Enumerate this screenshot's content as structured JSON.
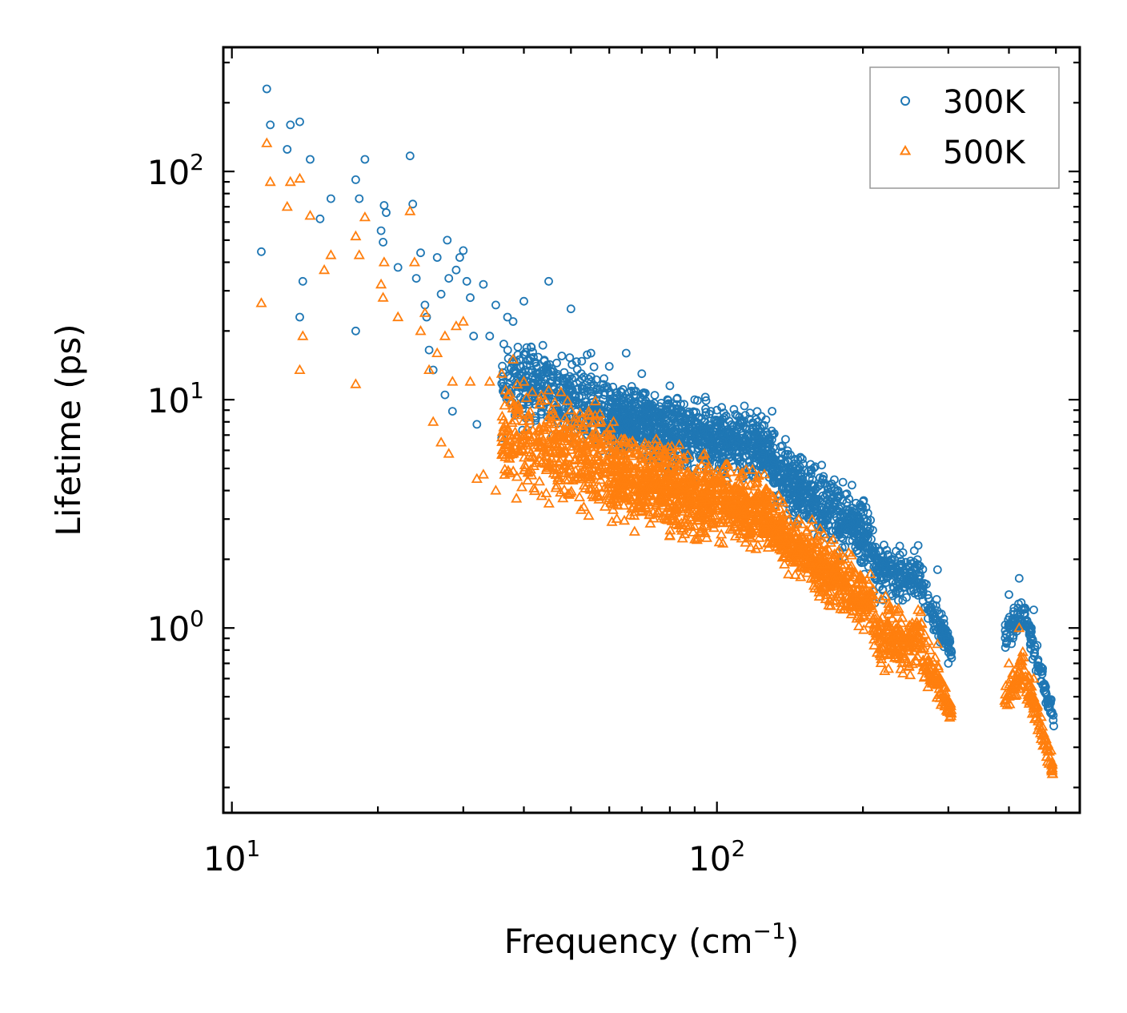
{
  "chart_data": {
    "type": "scatter",
    "title": "",
    "xlabel": "Frequency (cm",
    "xlabel_sup": "−1",
    "xlabel_end": ")",
    "ylabel": "Lifetime (ps)",
    "xscale": "log",
    "yscale": "log",
    "xlim": [
      9.6,
      560
    ],
    "ylim": [
      0.155,
      350
    ],
    "legend_position": "top-right",
    "x_ticks": [
      {
        "value": 10,
        "base": "10",
        "exp": "1"
      },
      {
        "value": 100,
        "base": "10",
        "exp": "2"
      }
    ],
    "y_ticks": [
      {
        "value": 1,
        "base": "10",
        "exp": "0"
      },
      {
        "value": 10,
        "base": "10",
        "exp": "1"
      },
      {
        "value": 100,
        "base": "10",
        "exp": "2"
      }
    ],
    "series": [
      {
        "name": "300K",
        "marker": "circle",
        "color": "#1f77b4",
        "points": [
          [
            11.5,
            44.5
          ],
          [
            11.8,
            230
          ],
          [
            12.0,
            160
          ],
          [
            13.0,
            125
          ],
          [
            13.2,
            160
          ],
          [
            13.8,
            165
          ],
          [
            13.8,
            23
          ],
          [
            14.0,
            33
          ],
          [
            14.5,
            113
          ],
          [
            15.2,
            62
          ],
          [
            16.0,
            76
          ],
          [
            18.0,
            20
          ],
          [
            18.0,
            92
          ],
          [
            18.3,
            76
          ],
          [
            18.8,
            113
          ],
          [
            20.3,
            55
          ],
          [
            20.5,
            49
          ],
          [
            20.6,
            71
          ],
          [
            20.8,
            66
          ],
          [
            22.0,
            38
          ],
          [
            23.3,
            117
          ],
          [
            23.6,
            72
          ],
          [
            24.0,
            34
          ],
          [
            24.5,
            44
          ],
          [
            25.0,
            26
          ],
          [
            25.2,
            23
          ],
          [
            25.5,
            16.5
          ],
          [
            26.0,
            13.5
          ],
          [
            26.5,
            42
          ],
          [
            27.0,
            29
          ],
          [
            27.5,
            10.5
          ],
          [
            27.8,
            50
          ],
          [
            28.0,
            34
          ],
          [
            28.5,
            8.9
          ],
          [
            29.0,
            37
          ],
          [
            29.5,
            42
          ],
          [
            30.0,
            45
          ],
          [
            30.5,
            33
          ],
          [
            31.0,
            28
          ],
          [
            31.5,
            19
          ],
          [
            32.0,
            7.8
          ],
          [
            33.0,
            32
          ],
          [
            34.0,
            19
          ],
          [
            35.0,
            26
          ],
          [
            36.0,
            6.8
          ],
          [
            37.0,
            23
          ],
          [
            38.0,
            22
          ],
          [
            40.0,
            27
          ],
          [
            45.0,
            33
          ],
          [
            50.0,
            25
          ],
          [
            55.0,
            16
          ],
          [
            60.0,
            14
          ],
          [
            65.0,
            16
          ],
          [
            70.0,
            13
          ],
          [
            80.0,
            11.5
          ],
          [
            90.0,
            10
          ],
          [
            100.0,
            9
          ],
          [
            120.0,
            7
          ],
          [
            150.0,
            5.5
          ],
          [
            175.0,
            4
          ],
          [
            200.0,
            2.6
          ],
          [
            230.0,
            2
          ],
          [
            260.0,
            2.3
          ],
          [
            285.0,
            1.8
          ],
          [
            300.0,
            0.7
          ],
          [
            400.0,
            1.4
          ],
          [
            420.0,
            1.65
          ],
          [
            450.0,
            1.2
          ],
          [
            490.0,
            0.42
          ]
        ]
      },
      {
        "name": "500K",
        "marker": "triangle",
        "color": "#ff7f0e",
        "points": [
          [
            11.5,
            26.5
          ],
          [
            11.8,
            133
          ],
          [
            12.0,
            90
          ],
          [
            13.2,
            90
          ],
          [
            13.8,
            93
          ],
          [
            13.0,
            70
          ],
          [
            13.8,
            13.5
          ],
          [
            14.0,
            19
          ],
          [
            14.5,
            64
          ],
          [
            15.5,
            37
          ],
          [
            16.0,
            43
          ],
          [
            18.0,
            11.7
          ],
          [
            18.0,
            52
          ],
          [
            18.3,
            43
          ],
          [
            18.8,
            63
          ],
          [
            20.3,
            32
          ],
          [
            20.5,
            28
          ],
          [
            20.6,
            40
          ],
          [
            22.0,
            23
          ],
          [
            23.3,
            67
          ],
          [
            23.8,
            40
          ],
          [
            24.5,
            20
          ],
          [
            25.0,
            24
          ],
          [
            25.5,
            13.5
          ],
          [
            26.0,
            8
          ],
          [
            26.5,
            16
          ],
          [
            27.0,
            6.5
          ],
          [
            27.5,
            19
          ],
          [
            28.0,
            5.8
          ],
          [
            28.5,
            12
          ],
          [
            29.0,
            21
          ],
          [
            30.0,
            22
          ],
          [
            31.0,
            12
          ],
          [
            32.0,
            4.5
          ],
          [
            33.0,
            4.7
          ],
          [
            34.0,
            12
          ],
          [
            35.0,
            4
          ],
          [
            36.0,
            13
          ],
          [
            38.0,
            15
          ],
          [
            40.0,
            12
          ],
          [
            45.0,
            11
          ],
          [
            50.0,
            9
          ],
          [
            55.0,
            8.5
          ],
          [
            60.0,
            7
          ],
          [
            65.0,
            6.5
          ],
          [
            70.0,
            5.5
          ],
          [
            80.0,
            5
          ],
          [
            90.0,
            4.5
          ],
          [
            100.0,
            4
          ],
          [
            120.0,
            3
          ],
          [
            150.0,
            2.3
          ],
          [
            175.0,
            2.1
          ],
          [
            200.0,
            1.3
          ],
          [
            230.0,
            1.1
          ],
          [
            260.0,
            1.2
          ],
          [
            285.0,
            0.85
          ],
          [
            300.0,
            0.45
          ],
          [
            400.0,
            0.7
          ],
          [
            420.0,
            1.0
          ],
          [
            450.0,
            0.6
          ],
          [
            490.0,
            0.25
          ]
        ]
      }
    ],
    "density_bands": [
      {
        "series": 0,
        "segments": [
          {
            "x": [
              36,
              60
            ],
            "y_at_start": [
              7.0,
              22.0
            ],
            "y_at_end": [
              5.0,
              16.0
            ],
            "density": 12
          },
          {
            "x": [
              60,
              130
            ],
            "y_at_start": [
              5.0,
              14.0
            ],
            "y_at_end": [
              3.8,
              9.5
            ],
            "density": 18
          },
          {
            "x": [
              130,
              210
            ],
            "y_at_start": [
              3.2,
              8.0
            ],
            "y_at_end": [
              1.5,
              3.8
            ],
            "density": 16
          },
          {
            "x": [
              210,
              265
            ],
            "y_at_start": [
              1.2,
              2.6
            ],
            "y_at_end": [
              1.2,
              2.2
            ],
            "density": 12
          },
          {
            "x": [
              265,
              305
            ],
            "y_at_start": [
              1.0,
              2.1
            ],
            "y_at_end": [
              0.7,
              0.9
            ],
            "density": 10
          },
          {
            "x": [
              392,
              430
            ],
            "y_at_start": [
              0.75,
              1.2
            ],
            "y_at_end": [
              0.9,
              1.55
            ],
            "density": 9
          },
          {
            "x": [
              430,
              495
            ],
            "y_at_start": [
              0.85,
              1.5
            ],
            "y_at_end": [
              0.35,
              0.45
            ],
            "density": 9
          }
        ]
      },
      {
        "series": 1,
        "segments": [
          {
            "x": [
              36,
              60
            ],
            "y_at_start": [
              3.5,
              14.0
            ],
            "y_at_end": [
              2.6,
              11.0
            ],
            "density": 12
          },
          {
            "x": [
              60,
              130
            ],
            "y_at_start": [
              2.6,
              9.0
            ],
            "y_at_end": [
              1.9,
              5.0
            ],
            "density": 18
          },
          {
            "x": [
              130,
              210
            ],
            "y_at_start": [
              1.8,
              4.2
            ],
            "y_at_end": [
              0.8,
              2.0
            ],
            "density": 16
          },
          {
            "x": [
              210,
              265
            ],
            "y_at_start": [
              0.6,
              1.5
            ],
            "y_at_end": [
              0.55,
              1.3
            ],
            "density": 12
          },
          {
            "x": [
              265,
              305
            ],
            "y_at_start": [
              0.5,
              1.1
            ],
            "y_at_end": [
              0.38,
              0.5
            ],
            "density": 10
          },
          {
            "x": [
              392,
              430
            ],
            "y_at_start": [
              0.38,
              0.6
            ],
            "y_at_end": [
              0.5,
              0.9
            ],
            "density": 9
          },
          {
            "x": [
              430,
              495
            ],
            "y_at_start": [
              0.5,
              0.85
            ],
            "y_at_end": [
              0.2,
              0.28
            ],
            "density": 9
          }
        ]
      }
    ]
  }
}
